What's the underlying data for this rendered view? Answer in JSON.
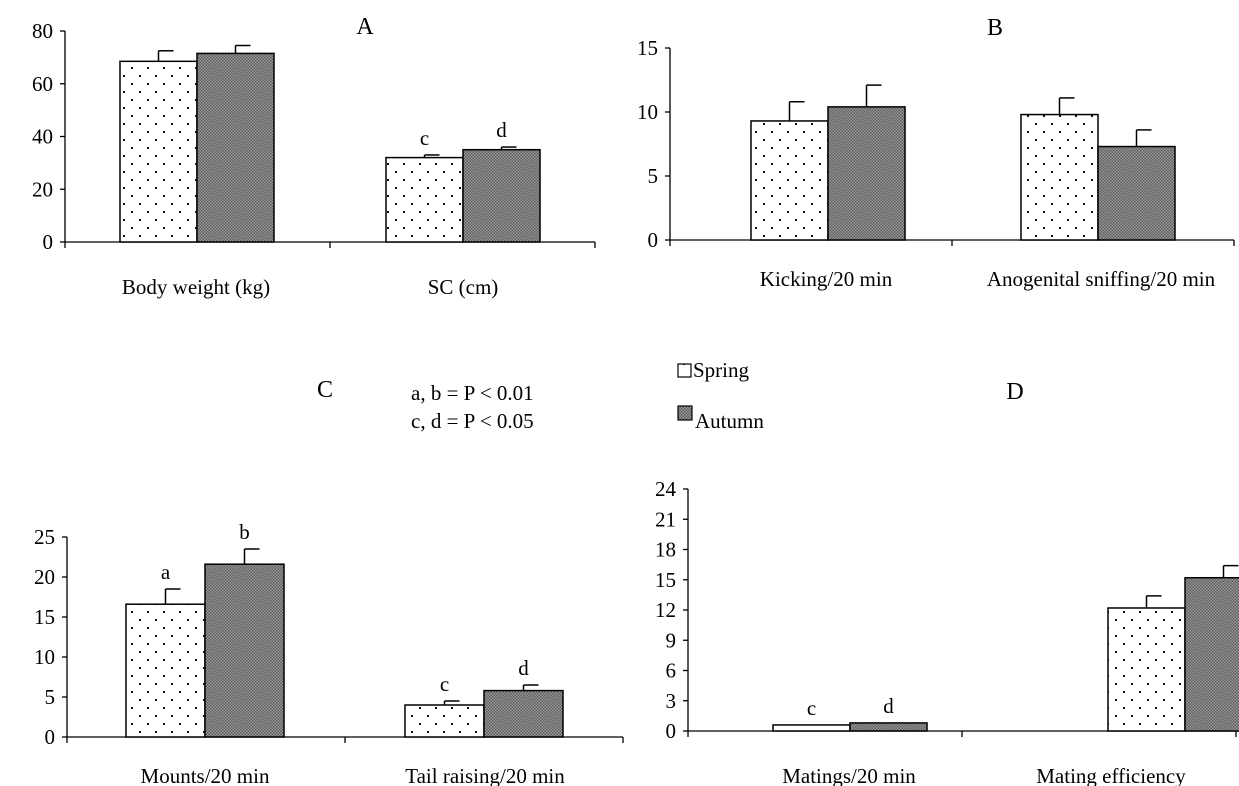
{
  "colors": {
    "axis": "#000000",
    "spring_fill": "#ffffff",
    "autumn_fill": "#808080"
  },
  "legend": {
    "items": [
      {
        "label": "Spring",
        "pattern": "dots"
      },
      {
        "label": "Autumn",
        "pattern": "checker"
      }
    ]
  },
  "notes": [
    "a, b = P < 0.01",
    "c, d = P < 0.05"
  ],
  "chart_data": [
    {
      "panel": "A",
      "type": "bar",
      "categories": [
        "Body weight (kg)",
        "SC (cm)"
      ],
      "series": [
        {
          "name": "Spring",
          "values": [
            68.5,
            32
          ],
          "errors": [
            4,
            1
          ],
          "sig": [
            "",
            "c"
          ]
        },
        {
          "name": "Autumn",
          "values": [
            71.5,
            35
          ],
          "errors": [
            3,
            1
          ],
          "sig": [
            "",
            "d"
          ]
        }
      ],
      "ylim": [
        0,
        80
      ],
      "yticks": [
        "0",
        "20",
        "40",
        "60",
        "80"
      ],
      "legend": "none",
      "grid": false
    },
    {
      "panel": "B",
      "type": "bar",
      "categories": [
        "Kicking/20 min",
        "Anogenital sniffing/20 min"
      ],
      "series": [
        {
          "name": "Spring",
          "values": [
            9.3,
            9.8
          ],
          "errors": [
            1.5,
            1.3
          ],
          "sig": [
            "",
            ""
          ]
        },
        {
          "name": "Autumn",
          "values": [
            10.4,
            7.3
          ],
          "errors": [
            1.7,
            1.3
          ],
          "sig": [
            "",
            ""
          ]
        }
      ],
      "ylim": [
        0,
        15
      ],
      "yticks": [
        "0",
        "5",
        "10",
        "15"
      ],
      "legend": "none",
      "grid": false
    },
    {
      "panel": "C",
      "type": "bar",
      "categories": [
        "Mounts/20 min",
        "Tail raising/20 min"
      ],
      "series": [
        {
          "name": "Spring",
          "values": [
            16.6,
            4
          ],
          "errors": [
            1.9,
            0.5
          ],
          "sig": [
            "a",
            "c"
          ]
        },
        {
          "name": "Autumn",
          "values": [
            21.6,
            5.8
          ],
          "errors": [
            1.9,
            0.7
          ],
          "sig": [
            "b",
            "d"
          ]
        }
      ],
      "ylim": [
        0,
        25
      ],
      "yticks": [
        "0",
        "5",
        "10",
        "15",
        "20",
        "25"
      ],
      "legend": "center",
      "grid": false
    },
    {
      "panel": "D",
      "type": "bar",
      "categories": [
        "Matings/20 min",
        "Mating efficiency"
      ],
      "series": [
        {
          "name": "Spring",
          "values": [
            0.6,
            12.2
          ],
          "errors": [
            0,
            1.2
          ],
          "sig": [
            "c",
            ""
          ]
        },
        {
          "name": "Autumn",
          "values": [
            0.8,
            15.2
          ],
          "errors": [
            0,
            1.2
          ],
          "sig": [
            "d",
            ""
          ]
        }
      ],
      "ylim": [
        0,
        24
      ],
      "yticks": [
        "0",
        "3",
        "6",
        "9",
        "12",
        "15",
        "18",
        "21",
        "24"
      ],
      "legend": "none",
      "grid": false
    }
  ]
}
